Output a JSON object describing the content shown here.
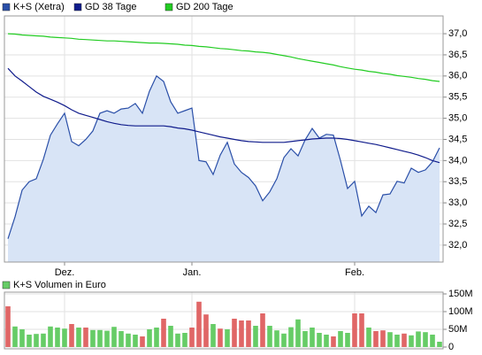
{
  "chart_data": [
    {
      "type": "line",
      "categories": [
        null,
        null,
        null,
        null,
        null,
        null,
        null,
        null,
        "Dez.",
        null,
        null,
        null,
        null,
        null,
        null,
        null,
        null,
        null,
        null,
        null,
        null,
        null,
        null,
        null,
        null,
        null,
        "Jan.",
        null,
        null,
        null,
        null,
        null,
        null,
        null,
        null,
        null,
        null,
        null,
        null,
        null,
        null,
        null,
        null,
        null,
        null,
        null,
        null,
        null,
        null,
        "Feb.",
        null,
        null,
        null,
        null,
        null,
        null,
        null,
        null,
        null,
        null,
        null,
        null
      ],
      "series": [
        {
          "name": "K+S (Xetra)",
          "style": "area",
          "color": "#2a4fa8",
          "fill": "#d8e4f6",
          "values": [
            32.15,
            32.67,
            33.3,
            33.5,
            33.57,
            34.03,
            34.6,
            34.87,
            35.12,
            34.45,
            34.35,
            34.5,
            34.7,
            35.12,
            35.18,
            35.12,
            35.22,
            35.24,
            35.35,
            35.12,
            35.64,
            36.0,
            35.87,
            35.39,
            35.12,
            35.18,
            35.24,
            34.0,
            33.97,
            33.67,
            34.13,
            34.43,
            33.92,
            33.72,
            33.6,
            33.4,
            33.05,
            33.26,
            33.57,
            34.07,
            34.28,
            34.11,
            34.49,
            34.76,
            34.53,
            34.62,
            34.6,
            34.0,
            33.34,
            33.51,
            32.69,
            32.92,
            32.77,
            33.19,
            33.21,
            33.51,
            33.47,
            33.82,
            33.72,
            33.78,
            33.97,
            34.3
          ]
        },
        {
          "name": "GD 38 Tage",
          "style": "line",
          "color": "#101c8c",
          "values": [
            36.18,
            36.0,
            35.88,
            35.75,
            35.62,
            35.52,
            35.45,
            35.38,
            35.3,
            35.2,
            35.12,
            35.07,
            35.02,
            34.97,
            34.92,
            34.88,
            34.85,
            34.83,
            34.82,
            34.82,
            34.82,
            34.82,
            34.82,
            34.8,
            34.77,
            34.75,
            34.72,
            34.68,
            34.64,
            34.6,
            34.56,
            34.53,
            34.5,
            34.47,
            34.45,
            34.44,
            34.43,
            34.43,
            34.43,
            34.43,
            34.45,
            34.47,
            34.49,
            34.51,
            34.52,
            34.53,
            34.53,
            34.52,
            34.5,
            34.47,
            34.44,
            34.41,
            34.38,
            34.34,
            34.3,
            34.26,
            34.22,
            34.18,
            34.13,
            34.07,
            34.0,
            33.95
          ]
        },
        {
          "name": "GD 200 Tage",
          "style": "line",
          "color": "#22cc22",
          "values": [
            37.0,
            36.99,
            36.97,
            36.96,
            36.95,
            36.94,
            36.92,
            36.91,
            36.9,
            36.89,
            36.87,
            36.86,
            36.85,
            36.84,
            36.83,
            36.83,
            36.82,
            36.81,
            36.8,
            36.79,
            36.78,
            36.78,
            36.77,
            36.76,
            36.75,
            36.73,
            36.72,
            36.7,
            36.69,
            36.67,
            36.65,
            36.64,
            36.62,
            36.6,
            36.59,
            36.57,
            36.56,
            36.54,
            36.51,
            36.48,
            36.45,
            36.41,
            36.38,
            36.35,
            36.32,
            36.29,
            36.26,
            36.22,
            36.19,
            36.16,
            36.14,
            36.11,
            36.09,
            36.06,
            36.04,
            36.01,
            35.99,
            35.97,
            35.94,
            35.92,
            35.89,
            35.87
          ]
        }
      ],
      "ylim": [
        31.6,
        37.42
      ],
      "yticks": [
        {
          "value": 32,
          "label": "32,0"
        },
        {
          "value": 32.5,
          "label": "32,5"
        },
        {
          "value": 33,
          "label": "33,0"
        },
        {
          "value": 33.5,
          "label": "33,5"
        },
        {
          "value": 34,
          "label": "34,0"
        },
        {
          "value": 34.5,
          "label": "34,5"
        },
        {
          "value": 35,
          "label": "35,0"
        },
        {
          "value": 35.5,
          "label": "35,5"
        },
        {
          "value": 36,
          "label": "36,0"
        },
        {
          "value": 36.5,
          "label": "36,5"
        },
        {
          "value": 37,
          "label": "37,0"
        }
      ],
      "grid": true
    },
    {
      "type": "bar",
      "categories": [
        null,
        null,
        null,
        null,
        null,
        null,
        null,
        null,
        null,
        null,
        null,
        null,
        null,
        null,
        null,
        null,
        null,
        null,
        null,
        null,
        null,
        null,
        null,
        null,
        null,
        null,
        null,
        null,
        null,
        null,
        null,
        null,
        null,
        null,
        null,
        null,
        null,
        null,
        null,
        null,
        null,
        null,
        null,
        null,
        null,
        null,
        null,
        null,
        null,
        null,
        null,
        null,
        null,
        null,
        null,
        null,
        null,
        null,
        null,
        null,
        null,
        null
      ],
      "series": [
        {
          "name": "K+S Volumen in Euro",
          "color": "#66cc66",
          "colors": [
            "#e06666",
            "#66cc66",
            "#66cc66",
            "#66cc66",
            "#66cc66",
            "#66cc66",
            "#66cc66",
            "#66cc66",
            "#66cc66",
            "#e06666",
            "#66cc66",
            "#e06666",
            "#66cc66",
            "#66cc66",
            "#66cc66",
            "#66cc66",
            "#66cc66",
            "#66cc66",
            "#66cc66",
            "#e06666",
            "#66cc66",
            "#66cc66",
            "#e06666",
            "#66cc66",
            "#66cc66",
            "#66cc66",
            "#e06666",
            "#e06666",
            "#e06666",
            "#66cc66",
            "#e06666",
            "#66cc66",
            "#e06666",
            "#e06666",
            "#e06666",
            "#66cc66",
            "#e06666",
            "#66cc66",
            "#66cc66",
            "#66cc66",
            "#66cc66",
            "#66cc66",
            "#66cc66",
            "#66cc66",
            "#66cc66",
            "#66cc66",
            "#e06666",
            "#66cc66",
            "#66cc66",
            "#e06666",
            "#e06666",
            "#66cc66",
            "#e06666",
            "#e06666",
            "#66cc66",
            "#66cc66",
            "#e06666",
            "#66cc66",
            "#66cc66",
            "#66cc66",
            "#66cc66",
            "#66cc66"
          ],
          "values": [
            115000000,
            58000000,
            50000000,
            35000000,
            37000000,
            38000000,
            58000000,
            55000000,
            52000000,
            65000000,
            55000000,
            55000000,
            48000000,
            48000000,
            46000000,
            57000000,
            45000000,
            38000000,
            35000000,
            30000000,
            50000000,
            55000000,
            80000000,
            60000000,
            38000000,
            40000000,
            55000000,
            128000000,
            92000000,
            65000000,
            52000000,
            50000000,
            80000000,
            75000000,
            75000000,
            60000000,
            95000000,
            60000000,
            47000000,
            38000000,
            56000000,
            78000000,
            45000000,
            55000000,
            40000000,
            35000000,
            30000000,
            45000000,
            40000000,
            95000000,
            95000000,
            55000000,
            45000000,
            47000000,
            42000000,
            35000000,
            38000000,
            33000000,
            44000000,
            42000000,
            35000000,
            15000000
          ]
        }
      ],
      "ylim": [
        -5000000,
        155000000
      ],
      "yticks": [
        0,
        {
          "value": 50000000,
          "label": "50M"
        },
        {
          "value": 100000000,
          "label": "100M"
        },
        {
          "value": 150000000,
          "label": "150M"
        }
      ],
      "grid": true
    }
  ]
}
